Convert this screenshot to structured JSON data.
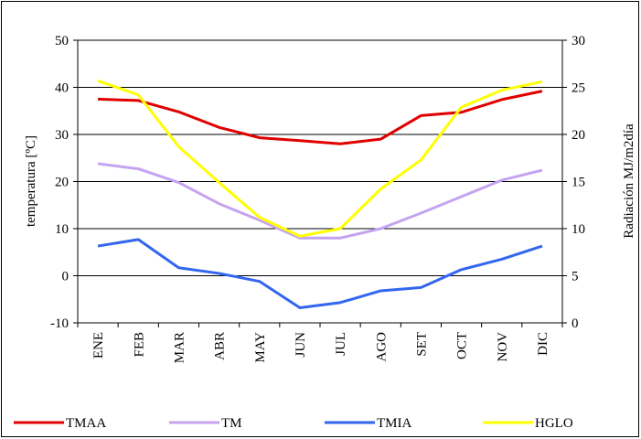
{
  "chart_data": {
    "type": "line",
    "categories": [
      "ENE",
      "FEB",
      "MAR",
      "ABR",
      "MAY",
      "JUN",
      "JUL",
      "AGO",
      "SET",
      "OCT",
      "NOV",
      "DIC"
    ],
    "y_label": "temperatura [ºC]",
    "y2_label": "Radiación MJ/m2día",
    "ylim": [
      -10,
      50
    ],
    "yticks": [
      -10,
      0,
      10,
      20,
      30,
      40,
      50
    ],
    "y2lim": [
      0,
      30
    ],
    "y2ticks": [
      0,
      5,
      10,
      15,
      20,
      25,
      30
    ],
    "grid": true,
    "legend": "bottom",
    "series": [
      {
        "name": "TMAA",
        "color": "#e00000",
        "values": [
          37.5,
          37.2,
          34.8,
          31.5,
          29.3,
          28.7,
          28.0,
          29.0,
          34.0,
          34.7,
          37.4,
          39.2
        ]
      },
      {
        "name": "TM",
        "color": "#c4a4f0",
        "values": [
          23.8,
          22.7,
          19.8,
          15.3,
          11.8,
          8.0,
          8.0,
          10.0,
          13.3,
          16.8,
          20.3,
          22.4
        ]
      },
      {
        "name": "TMIA",
        "color": "#3366ee",
        "values": [
          6.3,
          7.7,
          1.7,
          0.5,
          -1.2,
          -6.8,
          -5.7,
          -3.2,
          -2.5,
          1.3,
          3.5,
          6.3
        ]
      },
      {
        "name": "HGLO",
        "color": "#ffff00",
        "axis": "y2",
        "values": [
          25.7,
          24.2,
          18.7,
          14.9,
          11.2,
          9.2,
          10.0,
          14.2,
          17.3,
          22.9,
          24.7,
          25.6
        ]
      }
    ]
  }
}
